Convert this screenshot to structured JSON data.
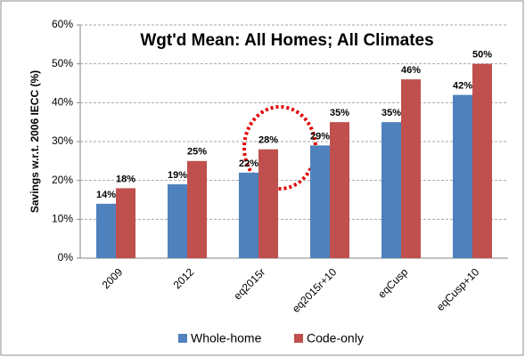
{
  "chart_data": {
    "type": "bar",
    "title": "Wgt'd Mean: All Homes; All Climates",
    "y_label": "Savings w.r.t. 2006 IECC (%)",
    "categories": [
      "2009",
      "2012",
      "eq2015r",
      "eq2015r+10",
      "eqCusp",
      "eqCusp+10"
    ],
    "series": [
      {
        "name": "Whole-home",
        "color": "#4f81bd",
        "values": [
          14,
          19,
          22,
          29,
          35,
          42
        ],
        "value_labels": [
          "14%",
          "19%",
          "22%",
          "29%",
          "35%",
          "42%"
        ]
      },
      {
        "name": "Code-only",
        "color": "#c0504d",
        "values": [
          18,
          25,
          28,
          35,
          46,
          50
        ],
        "value_labels": [
          "18%",
          "25%",
          "28%",
          "35%",
          "46%",
          "50%"
        ]
      }
    ],
    "ylim": [
      0,
      60
    ],
    "yticks": [
      {
        "value": 0,
        "label": "0%"
      },
      {
        "value": 10,
        "label": "10%"
      },
      {
        "value": 20,
        "label": "20%"
      },
      {
        "value": 30,
        "label": "30%"
      },
      {
        "value": 40,
        "label": "40%"
      },
      {
        "value": 50,
        "label": "50%"
      },
      {
        "value": 60,
        "label": "60%"
      }
    ],
    "grid": true
  }
}
